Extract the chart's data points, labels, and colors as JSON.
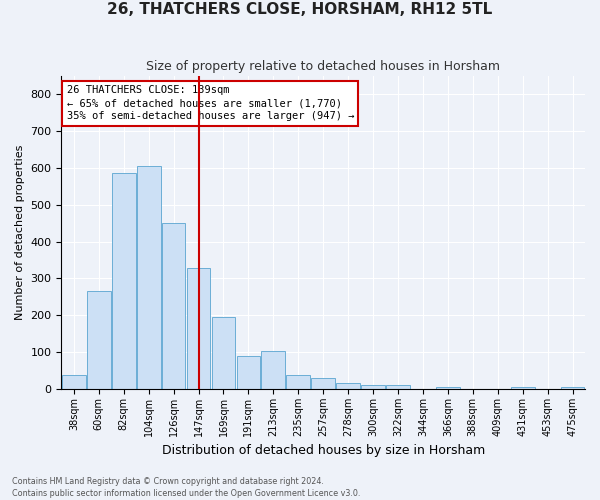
{
  "title": "26, THATCHERS CLOSE, HORSHAM, RH12 5TL",
  "subtitle": "Size of property relative to detached houses in Horsham",
  "xlabel": "Distribution of detached houses by size in Horsham",
  "ylabel": "Number of detached properties",
  "categories": [
    "38sqm",
    "60sqm",
    "82sqm",
    "104sqm",
    "126sqm",
    "147sqm",
    "169sqm",
    "191sqm",
    "213sqm",
    "235sqm",
    "257sqm",
    "278sqm",
    "300sqm",
    "322sqm",
    "344sqm",
    "366sqm",
    "388sqm",
    "409sqm",
    "431sqm",
    "453sqm",
    "475sqm"
  ],
  "values": [
    37,
    265,
    585,
    605,
    450,
    328,
    195,
    90,
    103,
    38,
    30,
    15,
    12,
    10,
    0,
    5,
    0,
    0,
    6,
    0,
    5
  ],
  "bar_color": "#cce0f5",
  "bar_edge_color": "#6baed6",
  "vline_x": 5.0,
  "vline_color": "#cc0000",
  "annotation_title": "26 THATCHERS CLOSE: 139sqm",
  "annotation_line1": "← 65% of detached houses are smaller (1,770)",
  "annotation_line2": "35% of semi-detached houses are larger (947) →",
  "annotation_box_color": "#ffffff",
  "annotation_box_edge_color": "#cc0000",
  "ylim": [
    0,
    850
  ],
  "yticks": [
    0,
    100,
    200,
    300,
    400,
    500,
    600,
    700,
    800
  ],
  "footer_line1": "Contains HM Land Registry data © Crown copyright and database right 2024.",
  "footer_line2": "Contains public sector information licensed under the Open Government Licence v3.0.",
  "bg_color": "#eef2f9",
  "plot_bg_color": "#eef2f9",
  "grid_color": "#ffffff",
  "title_fontsize": 11,
  "subtitle_fontsize": 9,
  "ylabel_fontsize": 8,
  "xlabel_fontsize": 9,
  "tick_fontsize": 8,
  "xtick_fontsize": 7,
  "ann_fontsize": 7.5
}
